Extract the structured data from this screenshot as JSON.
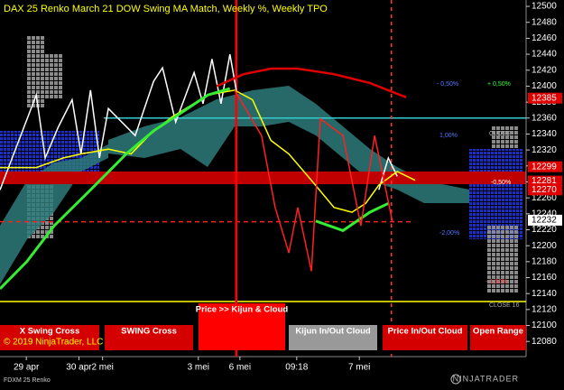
{
  "chart_data": {
    "type": "line",
    "title": "DAX 25 Renko March 21 DOW Swing MA Match, Weekly %, Weekly TPO",
    "xlim": [
      0,
      100
    ],
    "ylim": [
      12061,
      12508
    ],
    "yticks": [
      12080,
      12100,
      12120,
      12140,
      12160,
      12180,
      12200,
      12220,
      12240,
      12260,
      12280,
      12300,
      12320,
      12340,
      12360,
      12380,
      12400,
      12420,
      12440,
      12460,
      12480,
      12500
    ],
    "xticks": [
      {
        "value": 5,
        "label": "29 apr"
      },
      {
        "value": 15,
        "label": "30 apr"
      },
      {
        "value": 19.5,
        "label": "2 mei"
      },
      {
        "value": 37.7,
        "label": "3 mei"
      },
      {
        "value": 45.6,
        "label": "6 mei"
      },
      {
        "value": 56.4,
        "label": "09:18"
      },
      {
        "value": 68.3,
        "label": "7 mei"
      }
    ],
    "series": [
      {
        "color": "#ffffff",
        "x": [
          0,
          2.6,
          6.9,
          8.6,
          11.1,
          13.7,
          15.4,
          17.2,
          18.9,
          20.6,
          25.7,
          29.2,
          30.9,
          33.4,
          36.9,
          38.6,
          40.3,
          42,
          43.7,
          44.9,
          50,
          72,
          73.8,
          75.5
        ],
        "values": [
          12270,
          12315,
          12389,
          12310,
          12349,
          12383,
          12315,
          12395,
          12310,
          12372,
          12338,
          12406,
          12423,
          12355,
          12417,
          12378,
          12434,
          12378,
          12440,
          12395,
          null,
          12270,
          12310,
          12287
        ]
      },
      {
        "color": "#ffff00",
        "x": [
          0,
          6.9,
          12,
          15.4,
          20.6,
          24.9,
          28.3,
          32.6,
          39.5,
          44.6,
          48,
          51.5,
          54.9,
          59.2,
          63.5,
          66.9,
          69.5,
          72,
          75.5,
          78.9
        ],
        "values": [
          12298,
          12298,
          12310,
          12315,
          12321,
          12315,
          12338,
          12361,
          12389,
          12395,
          12383,
          12332,
          12315,
          12282,
          12248,
          12242,
          12253,
          12276,
          12293,
          12282
        ]
      },
      {
        "color": "#33ee33",
        "x": [
          0,
          5.1,
          10.3,
          17.2,
          24,
          29.2,
          34.3,
          39.5,
          43.7,
          50,
          60,
          65.2,
          70.3,
          73.8
        ],
        "values": [
          12146,
          12180,
          12225,
          12270,
          12315,
          12344,
          12366,
          12389,
          12397,
          null,
          12231,
          12219,
          12242,
          12253
        ]
      },
      {
        "color": "#e00000",
        "x": [
          41.2,
          46.3,
          51.5,
          56.6,
          63.5,
          70.3,
          77.2
        ],
        "values": [
          12400,
          12415,
          12422,
          12422,
          12415,
          12404,
          12386
        ]
      },
      {
        "color": "#ff2020",
        "x": [
          44.6,
          49.7,
          52.3,
          54.9,
          56.6,
          59.2,
          60.9,
          65.2,
          68.6,
          71.2,
          74.6
        ],
        "values": [
          12395,
          12338,
          12248,
          12191,
          12248,
          12168,
          12359,
          12338,
          12225,
          12338,
          12230
        ]
      }
    ],
    "hlines": [
      {
        "value": 12360,
        "color": "#33cccc"
      },
      {
        "value": 12130,
        "color": "#ffff00"
      },
      {
        "value": 12230,
        "color": "#ff2020"
      }
    ],
    "vlines": [
      {
        "value": 44.9,
        "color": "#ff0000"
      },
      {
        "value": 74.4,
        "color": "#ff3030"
      }
    ],
    "price_markers": [
      12385,
      12299,
      12281,
      12270,
      12232
    ],
    "price_marker_colors": [
      "#e00000",
      "#e00000",
      "#e00000",
      "#e00000",
      "#ffffff"
    ],
    "annotations": [
      "+ 0,50%",
      "- 0,50%",
      "1,00%",
      "-0,50%",
      "-2,00%",
      "- 1,50%",
      "CLOSE",
      "CLOSE 16"
    ]
  },
  "copyright": "© 2019 NinjaTrader, LLC",
  "instrument": "FDXM 25 Renko",
  "logo": "NINJATRADER",
  "buttons": [
    "X Swing Cross",
    "SWING Cross",
    "Price >> Kijun & Cloud",
    "Kijun In/Out Cloud",
    "Price In/Out Cloud",
    "Open Range"
  ]
}
